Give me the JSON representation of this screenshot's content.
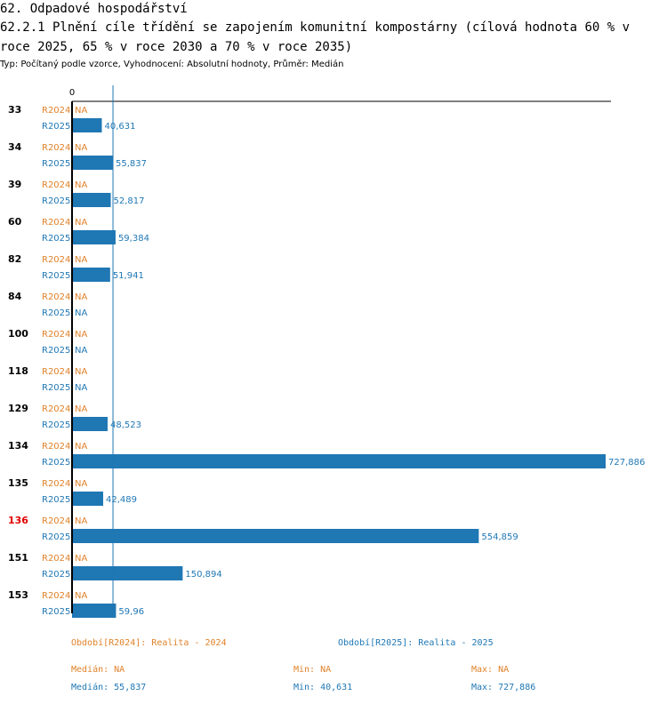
{
  "header": {
    "title": "62. Odpadové hospodářství",
    "subtitle": "62.2.1 Plnění cíle třídění se zapojením komunitní kompostárny (cílová hodnota 60 % v roce 2025, 65 % v roce 2030 a 70 % v roce 2035)",
    "meta": "Typ: Počítaný podle vzorce, Vyhodnocení: Absolutní hodnoty, Průměr: Medián"
  },
  "colors": {
    "r2024": "#e0822a",
    "r2025": "#1f77b4",
    "highlight_label": "#e00000"
  },
  "chart_data": {
    "type": "bar",
    "orientation": "horizontal",
    "axis_zero_label": "0",
    "median_line_value": 55.837,
    "xlim": [
      0,
      727.886
    ],
    "series_labels": [
      "R2024",
      "R2025"
    ],
    "highlighted_category": "136",
    "categories": [
      "33",
      "34",
      "39",
      "60",
      "82",
      "84",
      "100",
      "118",
      "129",
      "134",
      "135",
      "136",
      "151",
      "153"
    ],
    "series": [
      {
        "name": "R2024",
        "values": [
          null,
          null,
          null,
          null,
          null,
          null,
          null,
          null,
          null,
          null,
          null,
          null,
          null,
          null
        ],
        "display": [
          "NA",
          "NA",
          "NA",
          "NA",
          "NA",
          "NA",
          "NA",
          "NA",
          "NA",
          "NA",
          "NA",
          "NA",
          "NA",
          "NA"
        ]
      },
      {
        "name": "R2025",
        "values": [
          40.631,
          55.837,
          52.817,
          59.384,
          51.941,
          null,
          null,
          null,
          48.523,
          727.886,
          42.489,
          554.859,
          150.894,
          59.96
        ],
        "display": [
          "40,631",
          "55,837",
          "52,817",
          "59,384",
          "51,941",
          "NA",
          "NA",
          "NA",
          "48,523",
          "727,886",
          "42,489",
          "554,859",
          "150,894",
          "59,96"
        ]
      }
    ]
  },
  "legend": {
    "period2024": "Období[R2024]: Realita - 2024",
    "period2025": "Období[R2025]: Realita - 2025",
    "median2024": "Medián: NA",
    "min2024": "Min: NA",
    "max2024": "Max: NA",
    "median2025": "Medián: 55,837",
    "min2025": "Min: 40,631",
    "max2025": "Max: 727,886"
  }
}
